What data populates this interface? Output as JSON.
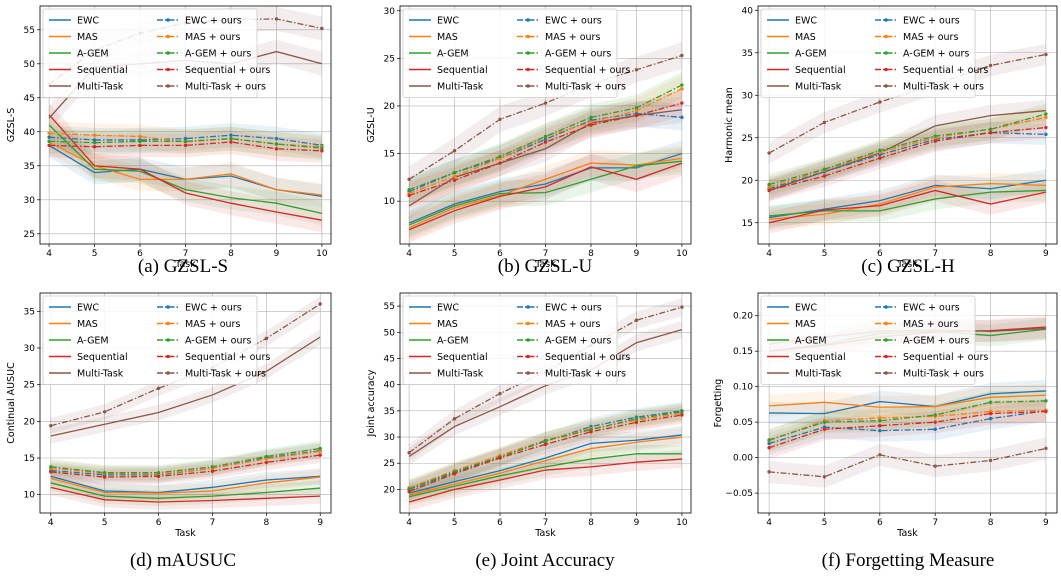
{
  "figure": {
    "background": "#ffffff"
  },
  "legend": {
    "entries": [
      {
        "label": "EWC",
        "color": "#1f77b4",
        "style": "solid"
      },
      {
        "label": "MAS",
        "color": "#ff7f0e",
        "style": "solid"
      },
      {
        "label": "A-GEM",
        "color": "#2ca02c",
        "style": "solid"
      },
      {
        "label": "Sequential",
        "color": "#d62728",
        "style": "solid"
      },
      {
        "label": "Multi-Task",
        "color": "#8c564b",
        "style": "solid"
      },
      {
        "label": "EWC + ours",
        "color": "#1f77b4",
        "style": "dashdot"
      },
      {
        "label": "MAS + ours",
        "color": "#ff7f0e",
        "style": "dashdot"
      },
      {
        "label": "A-GEM + ours",
        "color": "#2ca02c",
        "style": "dashdot"
      },
      {
        "label": "Sequential + ours",
        "color": "#d62728",
        "style": "dashdot"
      },
      {
        "label": "Multi-Task + ours",
        "color": "#8c564b",
        "style": "dashdot"
      }
    ],
    "placement": "top-left"
  },
  "chart_data": [
    {
      "type": "line",
      "caption": "(a) GZSL-S",
      "xlabel": "Task",
      "ylabel": "GZSL-S",
      "x": [
        4,
        5,
        6,
        7,
        8,
        9,
        10
      ],
      "xticks": [
        4,
        5,
        6,
        7,
        8,
        9,
        10
      ],
      "yticks": [
        25,
        30,
        35,
        40,
        45,
        50,
        55
      ],
      "xlim": [
        3.8,
        10.2
      ],
      "ylim": [
        23.5,
        58.5
      ],
      "grid": true,
      "series": [
        {
          "name": "EWC",
          "values": [
            38,
            34,
            34.5,
            33,
            33.5,
            31.5,
            30.5
          ]
        },
        {
          "name": "MAS",
          "values": [
            38.5,
            35,
            33,
            33,
            33.8,
            31.5,
            30.7
          ]
        },
        {
          "name": "A-GEM",
          "values": [
            41,
            34.5,
            34.2,
            31.5,
            30.3,
            29.5,
            28
          ]
        },
        {
          "name": "Sequential",
          "values": [
            42.5,
            35,
            34.5,
            31,
            29.5,
            28.2,
            27
          ]
        },
        {
          "name": "Multi-Task",
          "values": [
            42,
            49.5,
            50,
            50.5,
            50,
            51.8,
            50
          ]
        },
        {
          "name": "EWC + ours",
          "values": [
            39.2,
            38.8,
            38.8,
            39,
            39.5,
            39,
            38
          ]
        },
        {
          "name": "MAS + ours",
          "values": [
            39.8,
            39.5,
            39.3,
            38.5,
            39,
            38.2,
            37.8
          ]
        },
        {
          "name": "A-GEM + ours",
          "values": [
            38.6,
            38.4,
            38.6,
            38.6,
            39,
            38.2,
            37.6
          ]
        },
        {
          "name": "Sequential + ours",
          "values": [
            38,
            37.8,
            38,
            38,
            38.5,
            37.5,
            37.2
          ]
        },
        {
          "name": "Multi-Task + ours",
          "values": [
            47,
            52,
            54.5,
            56,
            56.5,
            56.6,
            55.2
          ]
        }
      ],
      "bands": [
        3,
        3,
        3,
        3,
        4,
        6,
        6,
        3,
        3,
        3,
        3,
        4
      ]
    },
    {
      "type": "line",
      "caption": "(b) GZSL-U",
      "xlabel": "Task",
      "ylabel": "GZSL-U",
      "x": [
        4,
        5,
        6,
        7,
        8,
        9,
        10
      ],
      "xticks": [
        4,
        5,
        6,
        7,
        8,
        9,
        10
      ],
      "yticks": [
        10,
        15,
        20,
        25,
        30
      ],
      "xlim": [
        3.8,
        10.2
      ],
      "ylim": [
        5.5,
        30.5
      ],
      "grid": true,
      "series": [
        {
          "name": "EWC",
          "values": [
            7.7,
            9.7,
            11,
            11.8,
            13.5,
            13.5,
            15
          ]
        },
        {
          "name": "MAS",
          "values": [
            7.2,
            9.3,
            10.6,
            12.3,
            14,
            13.8,
            14.5
          ]
        },
        {
          "name": "A-GEM",
          "values": [
            7.5,
            9.5,
            10.8,
            10.9,
            12.3,
            13.7,
            14.2
          ]
        },
        {
          "name": "Sequential",
          "values": [
            7,
            9,
            10.5,
            11.5,
            13.6,
            12.3,
            14
          ]
        },
        {
          "name": "Multi-Task",
          "values": [
            9.5,
            12.5,
            14,
            15.5,
            18.2,
            19,
            19.6
          ]
        },
        {
          "name": "EWC + ours",
          "values": [
            11,
            13,
            14.5,
            16.5,
            18.5,
            19.2,
            18.8
          ]
        },
        {
          "name": "MAS + ours",
          "values": [
            10.8,
            12.6,
            14.5,
            16.8,
            18.3,
            19.5,
            21.8
          ]
        },
        {
          "name": "A-GEM + ours",
          "values": [
            11.2,
            13,
            14.7,
            16.8,
            18.8,
            19.8,
            22.2
          ]
        },
        {
          "name": "Sequential + ours",
          "values": [
            10.6,
            12.2,
            14,
            16.2,
            18,
            19,
            20.3
          ]
        },
        {
          "name": "Multi-Task + ours",
          "values": [
            12.3,
            15.3,
            18.6,
            20.3,
            22.3,
            23.8,
            25.3
          ]
        }
      ]
    },
    {
      "type": "line",
      "caption": "(c) GZSL-H",
      "xlabel": "Task",
      "ylabel": "Harmonic mean",
      "x": [
        4,
        5,
        6,
        7,
        8,
        9
      ],
      "xticks": [
        4,
        5,
        6,
        7,
        8,
        9
      ],
      "yticks": [
        15,
        20,
        25,
        30,
        35,
        40
      ],
      "xlim": [
        3.8,
        9.2
      ],
      "ylim": [
        12.5,
        40.5
      ],
      "grid": true,
      "series": [
        {
          "name": "EWC",
          "values": [
            15.6,
            16.6,
            17.6,
            19.4,
            19,
            20
          ]
        },
        {
          "name": "MAS",
          "values": [
            15.4,
            16,
            17.2,
            19.2,
            19.6,
            19.4
          ]
        },
        {
          "name": "A-GEM",
          "values": [
            15.8,
            16.4,
            16.4,
            17.8,
            18.6,
            18.8
          ]
        },
        {
          "name": "Sequential",
          "values": [
            15,
            16.5,
            17,
            18.8,
            17.2,
            18.6
          ]
        },
        {
          "name": "Multi-Task",
          "values": [
            18.8,
            21,
            23.2,
            26.4,
            27.6,
            28.2
          ]
        },
        {
          "name": "EWC + ours",
          "values": [
            19,
            21,
            23,
            24.8,
            25.6,
            25.4
          ]
        },
        {
          "name": "MAS + ours",
          "values": [
            19.2,
            21.2,
            23.3,
            25,
            26,
            27.4
          ]
        },
        {
          "name": "A-GEM + ours",
          "values": [
            19.5,
            21.3,
            23.5,
            25.2,
            26,
            27.8
          ]
        },
        {
          "name": "Sequential + ours",
          "values": [
            18.8,
            20.5,
            22.6,
            24.6,
            25.6,
            26.2
          ]
        },
        {
          "name": "Multi-Task + ours",
          "values": [
            23.2,
            26.8,
            29.2,
            31.3,
            33.5,
            34.8
          ]
        }
      ]
    },
    {
      "type": "line",
      "caption": "(d) mAUSUC",
      "xlabel": "Task",
      "ylabel": "Continual AUSUC",
      "x": [
        4,
        5,
        6,
        7,
        8,
        9
      ],
      "xticks": [
        4,
        5,
        6,
        7,
        8,
        9
      ],
      "yticks": [
        10,
        15,
        20,
        25,
        30,
        35
      ],
      "xlim": [
        3.8,
        9.2
      ],
      "ylim": [
        7.5,
        37.5
      ],
      "grid": true,
      "series": [
        {
          "name": "EWC",
          "values": [
            12.5,
            10.5,
            10.3,
            11,
            12,
            12.5
          ]
        },
        {
          "name": "MAS",
          "values": [
            12.2,
            10.3,
            10.2,
            10.5,
            11.6,
            12.4
          ]
        },
        {
          "name": "A-GEM",
          "values": [
            11.6,
            9.8,
            9.5,
            9.8,
            10.3,
            10.9
          ]
        },
        {
          "name": "Sequential",
          "values": [
            11,
            9.3,
            9,
            9.2,
            9.5,
            9.8
          ]
        },
        {
          "name": "Multi-Task",
          "values": [
            18,
            19.6,
            21.2,
            23.6,
            26.8,
            31.5
          ]
        },
        {
          "name": "EWC + ours",
          "values": [
            13.3,
            12.7,
            12.7,
            13.6,
            15,
            16
          ]
        },
        {
          "name": "MAS + ours",
          "values": [
            13.6,
            12.9,
            12.8,
            13.6,
            14.9,
            15.9
          ]
        },
        {
          "name": "A-GEM + ours",
          "values": [
            13.8,
            13,
            13,
            13.8,
            15.2,
            16.3
          ]
        },
        {
          "name": "Sequential + ours",
          "values": [
            13.1,
            12.4,
            12.5,
            13.2,
            14.4,
            15.4
          ]
        },
        {
          "name": "Multi-Task + ours",
          "values": [
            19.4,
            21.3,
            24.5,
            27.3,
            31.3,
            36
          ]
        }
      ]
    },
    {
      "type": "line",
      "caption": "(e) Joint Accuracy",
      "xlabel": "Task",
      "ylabel": "Joint accuracy",
      "x": [
        4,
        5,
        6,
        7,
        8,
        9,
        10
      ],
      "xticks": [
        4,
        5,
        6,
        7,
        8,
        9,
        10
      ],
      "yticks": [
        20,
        25,
        30,
        35,
        40,
        45,
        50,
        55
      ],
      "xlim": [
        3.8,
        10.2
      ],
      "ylim": [
        15.5,
        57.5
      ],
      "grid": true,
      "series": [
        {
          "name": "EWC",
          "values": [
            19.3,
            21.5,
            23.6,
            26,
            28.8,
            29.4,
            30.4
          ]
        },
        {
          "name": "MAS",
          "values": [
            18.9,
            21,
            23.1,
            25.5,
            27.8,
            29,
            30
          ]
        },
        {
          "name": "A-GEM",
          "values": [
            18.6,
            20.6,
            22.6,
            24.3,
            25.8,
            26.8,
            26.8
          ]
        },
        {
          "name": "Sequential",
          "values": [
            17.6,
            20,
            21.8,
            23.7,
            24.3,
            25.2,
            25.8
          ]
        },
        {
          "name": "Multi-Task",
          "values": [
            26.3,
            32,
            35.8,
            39.8,
            42.8,
            48,
            50.5
          ]
        },
        {
          "name": "EWC + ours",
          "values": [
            20,
            23.2,
            26.2,
            29.2,
            32,
            33.8,
            35
          ]
        },
        {
          "name": "MAS + ours",
          "values": [
            20.3,
            23.6,
            26.5,
            29.4,
            31.6,
            33.2,
            34.5
          ]
        },
        {
          "name": "A-GEM + ours",
          "values": [
            20.1,
            23.4,
            26.2,
            29.3,
            31.4,
            33.5,
            34.8
          ]
        },
        {
          "name": "Sequential + ours",
          "values": [
            19.6,
            23,
            26,
            28.6,
            31,
            32.8,
            34.2
          ]
        },
        {
          "name": "Multi-Task + ours",
          "values": [
            27,
            33.5,
            38.3,
            42.5,
            47.5,
            52.3,
            54.8
          ]
        }
      ]
    },
    {
      "type": "line",
      "caption": "(f) Forgetting Measure",
      "xlabel": "Task",
      "ylabel": "Forgetting",
      "x": [
        4,
        5,
        6,
        7,
        8,
        9
      ],
      "xticks": [
        4,
        5,
        6,
        7,
        8,
        9
      ],
      "yticks": [
        -0.05,
        0.0,
        0.05,
        0.1,
        0.15,
        0.2
      ],
      "ytick_labels": [
        "−0.05",
        "0.00",
        "0.05",
        "0.10",
        "0.15",
        "0.20"
      ],
      "xlim": [
        3.8,
        9.2
      ],
      "ylim": [
        -0.078,
        0.232
      ],
      "grid": true,
      "series": [
        {
          "name": "EWC",
          "values": [
            0.063,
            0.062,
            0.079,
            0.072,
            0.09,
            0.094
          ]
        },
        {
          "name": "MAS",
          "values": [
            0.073,
            0.078,
            0.071,
            0.072,
            0.085,
            0.088
          ]
        },
        {
          "name": "A-GEM",
          "values": [
            0.15,
            0.16,
            0.175,
            0.178,
            0.172,
            0.181
          ]
        },
        {
          "name": "Sequential",
          "values": [
            0.15,
            0.158,
            0.17,
            0.177,
            0.179,
            0.184
          ]
        },
        {
          "name": "Multi-Task",
          "values": [
            0.16,
            0.17,
            0.178,
            0.18,
            0.178,
            0.182
          ]
        },
        {
          "name": "EWC + ours",
          "values": [
            0.02,
            0.043,
            0.038,
            0.04,
            0.055,
            0.066
          ]
        },
        {
          "name": "MAS + ours",
          "values": [
            0.024,
            0.052,
            0.056,
            0.058,
            0.065,
            0.067
          ]
        },
        {
          "name": "A-GEM + ours",
          "values": [
            0.025,
            0.05,
            0.052,
            0.06,
            0.078,
            0.08
          ]
        },
        {
          "name": "Sequential + ours",
          "values": [
            0.014,
            0.04,
            0.045,
            0.05,
            0.062,
            0.065
          ]
        },
        {
          "name": "Multi-Task + ours",
          "values": [
            -0.02,
            -0.027,
            0.004,
            -0.012,
            -0.004,
            0.013
          ]
        }
      ]
    }
  ]
}
